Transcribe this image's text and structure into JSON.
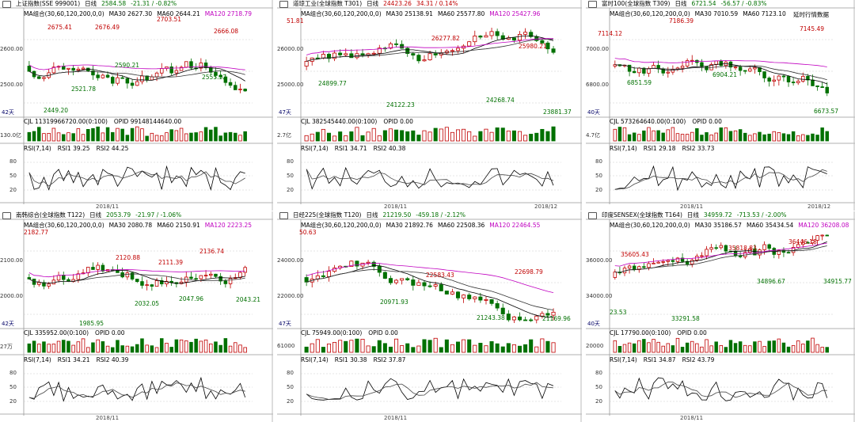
{
  "panes": [
    {
      "name": "上证指数(SSE 999001)",
      "period": "日线",
      "price": "2584.58",
      "change": "-21.31 / -0.82%",
      "trend": "down",
      "ma_label": "MA组合(30,60,120,200,0,0)",
      "ma30": "MA30 2627.30",
      "ma60": "MA60 2644.21",
      "ma120": "MA120 2718.79",
      "yticks": [
        "2600.00",
        "2500.00"
      ],
      "days": "42天",
      "annotations": [
        "2675.41",
        "2676.49",
        "2703.51",
        "2666.08",
        "2590.21",
        "2521.78",
        "2555.32",
        "2449.20"
      ],
      "vol_header": "CJL 11319966720.00(0:100)",
      "opid": "OPID 99148144640.00",
      "vol_tick": "130.0亿",
      "rsi_header": "RSI(7,14)",
      "rsi1": "RSI1 39.25",
      "rsi2": "RSI2 44.25",
      "rsi_ticks": [
        "80",
        "50",
        "20"
      ],
      "dates": [
        "2018/11"
      ],
      "note": ""
    },
    {
      "name": "道琼工业(全球指数 T301)",
      "period": "日线",
      "price": "24423.26",
      "change": "34.31 / 0.14%",
      "trend": "up",
      "ma_label": "MA组合(30,60,120,200,0,0)",
      "ma30": "MA30 25138.91",
      "ma60": "MA60 25577.80",
      "ma120": "MA120 25427.96",
      "yticks": [
        "26000.00",
        "25000.00"
      ],
      "days": "47天",
      "annotations": [
        "51.81",
        "26277.82",
        "25980.21",
        "24899.77",
        "24122.23",
        "24268.74",
        "23881.37"
      ],
      "vol_header": "CJL 382545440.00(0:100)",
      "opid": "OPID 0.00",
      "vol_tick": "2.7亿",
      "rsi_header": "RSI(7,14)",
      "rsi1": "RSI1 34.71",
      "rsi2": "RSI2 40.38",
      "rsi_ticks": [
        "80",
        "50",
        "20"
      ],
      "dates": [
        "2018/11",
        "2018/12"
      ],
      "note": ""
    },
    {
      "name": "富时100(全球指数 T309)",
      "period": "日线",
      "price": "6721.54",
      "change": "-56.57 / -0.83%",
      "trend": "down",
      "ma_label": "MA组合(30,60,120,200,0,0)",
      "ma30": "MA30 7010.59",
      "ma60": "MA60 7123.10",
      "ma120": "",
      "yticks": [
        "7000.00",
        "6800.00"
      ],
      "days": "40天",
      "annotations": [
        "7114.12",
        "7186.39",
        "7145.49",
        "6851.59",
        "6904.21",
        "6673.57"
      ],
      "vol_header": "CJL 573264640.00(0:100)",
      "opid": "OPID 0.00",
      "vol_tick": "4.7亿",
      "rsi_header": "RSI(7,14)",
      "rsi1": "RSI1 29.18",
      "rsi2": "RSI2 33.73",
      "rsi_ticks": [
        "80",
        "50",
        "20"
      ],
      "dates": [
        "2018/11",
        "2018/12"
      ],
      "note": "延时行情数据"
    },
    {
      "name": "南韩综合(全球指数 T122)",
      "period": "日线",
      "price": "2053.79",
      "change": "-21.97 / -1.06%",
      "trend": "down",
      "ma_label": "MA组合(30,60,120,200,0,0)",
      "ma30": "MA30 2080.78",
      "ma60": "MA60 2150.91",
      "ma120": "MA120 2223.25",
      "yticks": [
        "2100.00",
        "2000.00"
      ],
      "days": "42天",
      "annotations": [
        "2182.77",
        "2120.88",
        "2111.39",
        "2136.74",
        "2032.05",
        "2047.96",
        "2043.21",
        "1985.95"
      ],
      "vol_header": "CJL 335952.00(0:100)",
      "opid": "OPID 0.00",
      "vol_tick": "27万",
      "rsi_header": "RSI(7,14)",
      "rsi1": "RSI1 34.21",
      "rsi2": "RSI2 40.39",
      "rsi_ticks": [
        "80",
        "50",
        "20"
      ],
      "dates": [
        "2018/11"
      ],
      "note": ""
    },
    {
      "name": "日经225(全球指数 T120)",
      "period": "日线",
      "price": "21219.50",
      "change": "-459.18 / -2.12%",
      "trend": "down",
      "ma_label": "MA组合(30,60,120,200,0,0)",
      "ma30": "MA30 21892.76",
      "ma60": "MA60 22508.36",
      "ma120": "MA120 22464.55",
      "yticks": [
        "24000.00",
        "22000.00"
      ],
      "days": "47天",
      "annotations": [
        "50.63",
        "22583.43",
        "22698.79",
        "20971.93",
        "21243.38",
        "21169.96"
      ],
      "vol_header": "CJL 75949.00(0:100)",
      "opid": "OPID 0.00",
      "vol_tick": "61000",
      "rsi_header": "RSI(7,14)",
      "rsi1": "RSI1 30.38",
      "rsi2": "RSI2 37.87",
      "rsi_ticks": [
        "80",
        "50",
        "20"
      ],
      "dates": [
        "2018/11"
      ],
      "note": ""
    },
    {
      "name": "印度SENSEX(全球指数 T164)",
      "period": "日线",
      "price": "34959.72",
      "change": "-713.53 / -2.00%",
      "trend": "down",
      "ma_label": "MA组合(30,60,120,200,0,0)",
      "ma30": "MA30 35186.57",
      "ma60": "MA60 35434.54",
      "ma120": "MA120 36208.08",
      "yticks": [
        "36000.00",
        "34000.00"
      ],
      "days": "40天",
      "annotations": [
        "35605.43",
        "35818.83",
        "36446.18",
        "34896.67",
        "34915.77",
        "33291.58",
        "23.53"
      ],
      "vol_header": "CJL 17790.00(0:100)",
      "opid": "OPID 0.00",
      "vol_tick": "20000",
      "rsi_header": "RSI(7,14)",
      "rsi1": "RSI1 34.87",
      "rsi2": "RSI2 43.79",
      "rsi_ticks": [
        "80",
        "50",
        "20"
      ],
      "dates": [
        "2018/11"
      ],
      "note": ""
    }
  ]
}
